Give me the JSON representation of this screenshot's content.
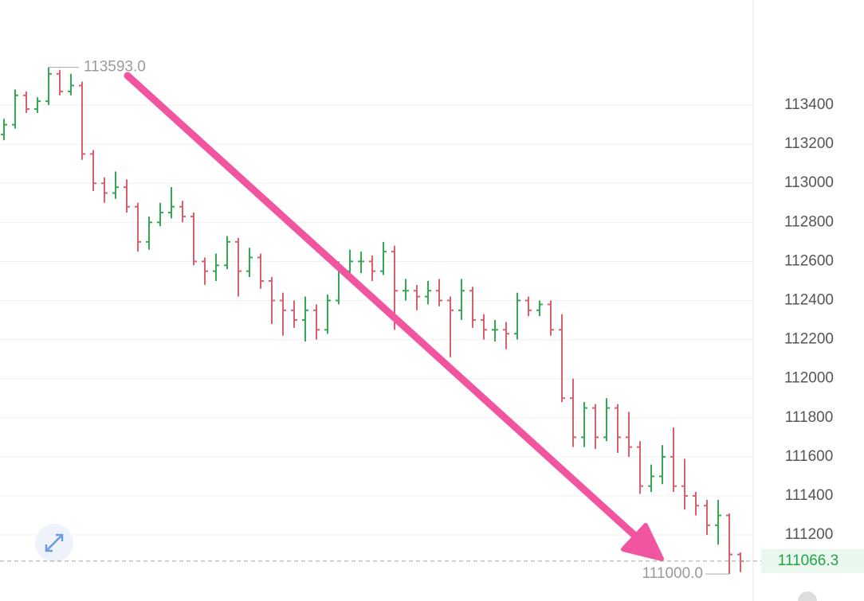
{
  "chart_data": {
    "type": "ohlc",
    "up_color": "#35a853",
    "down_color": "#d9606c",
    "ylim": [
      110862,
      113938
    ],
    "yticks": [
      111200,
      111400,
      111600,
      111800,
      112000,
      112200,
      112400,
      112600,
      112800,
      113000,
      113200,
      113400
    ],
    "grid": true,
    "open": [
      113250,
      113300,
      113450,
      113380,
      113420,
      113560,
      113470,
      113500,
      113150,
      113000,
      112950,
      112980,
      112880,
      112700,
      112800,
      112850,
      112880,
      112830,
      112600,
      112550,
      112580,
      112700,
      112550,
      112620,
      112500,
      112400,
      112350,
      112300,
      112350,
      112250,
      112400,
      112550,
      112600,
      112600,
      112550,
      112650,
      112450,
      112450,
      112420,
      112450,
      112400,
      112350,
      112450,
      112300,
      112250,
      112250,
      112230,
      112400,
      112350,
      112380,
      112250,
      111900,
      111700,
      111850,
      111700,
      111850,
      111700,
      111650,
      111450,
      111500,
      111600,
      111450,
      111400,
      111350,
      111250,
      111300,
      111100
    ],
    "high": [
      113330,
      113480,
      113470,
      113440,
      113593,
      113580,
      113560,
      113520,
      113170,
      113030,
      113060,
      113020,
      112900,
      112830,
      112900,
      112980,
      112910,
      112850,
      112620,
      112640,
      112730,
      112720,
      112670,
      112640,
      112520,
      112440,
      112400,
      112420,
      112380,
      112430,
      112600,
      112660,
      112650,
      112630,
      112700,
      112680,
      112510,
      112480,
      112500,
      112510,
      112420,
      112510,
      112470,
      112330,
      112300,
      112290,
      112440,
      112420,
      112400,
      112400,
      112330,
      112000,
      111880,
      111870,
      111900,
      111870,
      111830,
      111680,
      111560,
      111660,
      111750,
      111590,
      111420,
      111380,
      111380,
      111310,
      111110
    ],
    "low": [
      113220,
      113280,
      113360,
      113360,
      113400,
      113450,
      113450,
      113120,
      112960,
      112900,
      112920,
      112850,
      112650,
      112660,
      112780,
      112820,
      112800,
      112580,
      112480,
      112500,
      112560,
      112420,
      112520,
      112460,
      112280,
      112220,
      112260,
      112190,
      112200,
      112230,
      112380,
      112520,
      112540,
      112500,
      112530,
      112250,
      112400,
      112350,
      112380,
      112370,
      112110,
      112300,
      112260,
      112200,
      112190,
      112150,
      112200,
      112320,
      112320,
      112220,
      111880,
      111650,
      111650,
      111640,
      111680,
      111620,
      111600,
      111410,
      111420,
      111460,
      111420,
      111330,
      111300,
      111200,
      111150,
      111000,
      111010
    ],
    "close": [
      113300,
      113450,
      113380,
      113420,
      113560,
      113470,
      113500,
      113150,
      113000,
      112950,
      112980,
      112880,
      112700,
      112800,
      112850,
      112880,
      112830,
      112600,
      112550,
      112580,
      112700,
      112550,
      112620,
      112500,
      112400,
      112350,
      112300,
      112350,
      112250,
      112400,
      112550,
      112600,
      112600,
      112550,
      112650,
      112450,
      112450,
      112420,
      112450,
      112400,
      112350,
      112450,
      112300,
      112250,
      112250,
      112230,
      112400,
      112350,
      112380,
      112250,
      111900,
      111700,
      111850,
      111700,
      111850,
      111700,
      111650,
      111450,
      111500,
      111600,
      111450,
      111400,
      111350,
      111250,
      111300,
      111100,
      111066.3
    ],
    "high_label": {
      "value": 113593,
      "label": "113593.0"
    },
    "low_label": {
      "value": 111000,
      "label": "111000.0"
    },
    "last_price": 111066.3
  }
}
